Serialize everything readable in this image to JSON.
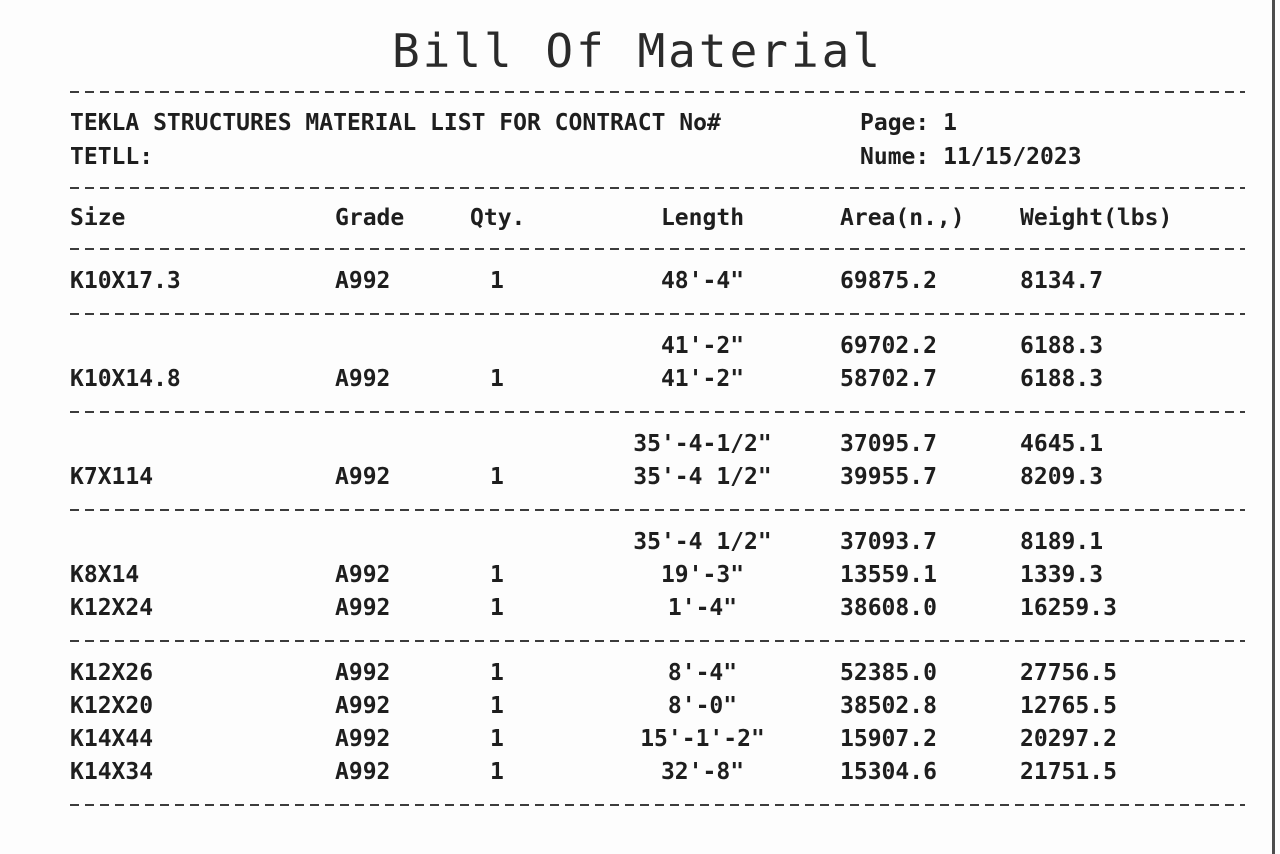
{
  "page": {
    "title": "Bill Of Material",
    "header": {
      "line1": "TEKLA STRUCTURES MATERIAL LIST FOR CONTRACT No#",
      "line2": "TETLL:",
      "page_label": "Page: ",
      "page_value": "1",
      "date_label": "Nume: ",
      "date_value": "11/15/2023"
    },
    "columns": [
      "Size",
      "Grade",
      "Qty.",
      "Length",
      "Area(n.,)",
      "Weight(lbs)"
    ],
    "sections": [
      {
        "rows": [
          {
            "size": "K10X17.3",
            "grade": "A992",
            "qty": "1",
            "length": "48'-4\"",
            "area": "69875.2",
            "weight": "8134.7"
          }
        ]
      },
      {
        "rows": [
          {
            "size": "",
            "grade": "",
            "qty": "",
            "length": "41'-2\"",
            "area": "69702.2",
            "weight": "6188.3"
          },
          {
            "size": "K10X14.8",
            "grade": "A992",
            "qty": "1",
            "length": "41'-2\"",
            "area": "58702.7",
            "weight": "6188.3"
          }
        ]
      },
      {
        "rows": [
          {
            "size": "",
            "grade": "",
            "qty": "",
            "length": "35'-4-1/2\"",
            "area": "37095.7",
            "weight": "4645.1"
          },
          {
            "size": "K7X114",
            "grade": "A992",
            "qty": "1",
            "length": "35'-4 1/2\"",
            "area": "39955.7",
            "weight": "8209.3"
          }
        ]
      },
      {
        "rows": [
          {
            "size": "",
            "grade": "",
            "qty": "",
            "length": "35'-4 1/2\"",
            "area": "37093.7",
            "weight": "8189.1"
          },
          {
            "size": "K8X14",
            "grade": "A992",
            "qty": "1",
            "length": "19'-3\"",
            "area": "13559.1",
            "weight": "1339.3"
          },
          {
            "size": "K12X24",
            "grade": "A992",
            "qty": "1",
            "length": "1'-4\"",
            "area": "38608.0",
            "weight": "16259.3"
          }
        ]
      },
      {
        "rows": [
          {
            "size": "K12X26",
            "grade": "A992",
            "qty": "1",
            "length": "8'-4\"",
            "area": "52385.0",
            "weight": "27756.5"
          },
          {
            "size": "K12X20",
            "grade": "A992",
            "qty": "1",
            "length": "8'-0\"",
            "area": "38502.8",
            "weight": "12765.5"
          },
          {
            "size": "K14X44",
            "grade": "A992",
            "qty": "1",
            "length": "15'-1'-2\"",
            "area": "15907.2",
            "weight": "20297.2"
          },
          {
            "size": "K14X34",
            "grade": "A992",
            "qty": "1",
            "length": "32'-8\"",
            "area": "15304.6",
            "weight": "21751.5"
          }
        ]
      }
    ]
  },
  "colors": {
    "background": "#fdfdfd",
    "text": "#1e1e1e",
    "divider": "#3c3c3c",
    "right_edge_line": "#4d4d4d"
  }
}
